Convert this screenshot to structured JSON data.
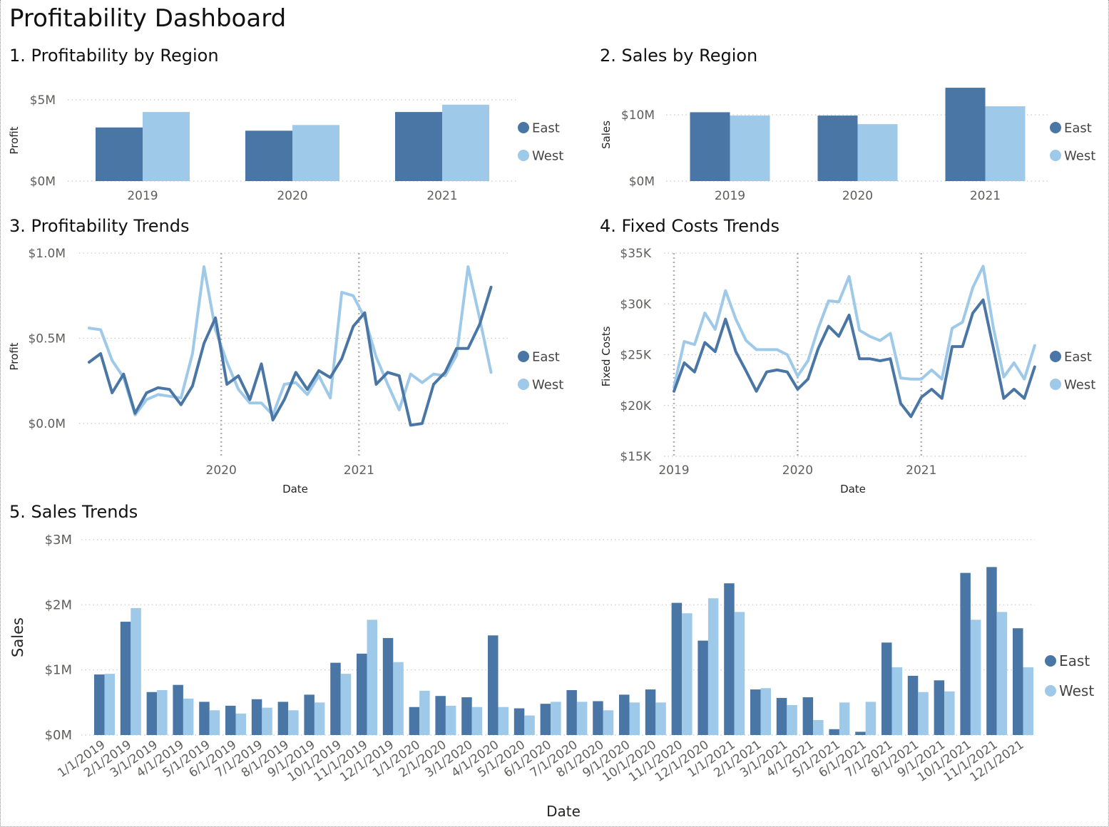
{
  "dashboard": {
    "title": "Profitability Dashboard"
  },
  "colors": {
    "east": "#4a76a6",
    "west": "#9ec9e8",
    "grid": "#c8c8c8",
    "text": "#605e5c"
  },
  "panels": {
    "p1": {
      "title": "1. Profitability by Region"
    },
    "p2": {
      "title": "2. Sales by Region"
    },
    "p3": {
      "title": "3. Profitability Trends"
    },
    "p4": {
      "title": "4. Fixed Costs Trends"
    },
    "p5": {
      "title": "5. Sales Trends"
    }
  },
  "chart_data": [
    {
      "id": "profit_by_region",
      "type": "bar",
      "title": "1. Profitability by Region",
      "xlabel": "",
      "ylabel": "Profit",
      "categories": [
        "2019",
        "2020",
        "2021"
      ],
      "series": [
        {
          "name": "East",
          "values": [
            3.3,
            3.1,
            4.25
          ]
        },
        {
          "name": "West",
          "values": [
            4.25,
            3.45,
            4.7
          ]
        }
      ],
      "ylim": [
        0,
        5
      ],
      "yticks": [
        0,
        5
      ],
      "ytick_labels": [
        "$0M",
        "$5M"
      ],
      "legend": [
        "East",
        "West"
      ],
      "legend_position": "right",
      "grid": true
    },
    {
      "id": "sales_by_region",
      "type": "bar",
      "title": "2. Sales by Region",
      "xlabel": "",
      "ylabel": "Sales",
      "categories": [
        "2019",
        "2020",
        "2021"
      ],
      "series": [
        {
          "name": "East",
          "values": [
            10.4,
            9.9,
            14.1
          ]
        },
        {
          "name": "West",
          "values": [
            9.9,
            8.6,
            11.3
          ]
        }
      ],
      "ylim": [
        0,
        14
      ],
      "yticks": [
        0,
        10
      ],
      "ytick_labels": [
        "$0M",
        "$10M"
      ],
      "legend": [
        "East",
        "West"
      ],
      "legend_position": "right",
      "grid": true
    },
    {
      "id": "profit_trends",
      "type": "line",
      "title": "3. Profitability Trends",
      "xlabel": "Date",
      "ylabel": "Profit",
      "x_start": "2019-01",
      "months": 36,
      "xticks": [
        {
          "label": "2020",
          "month_index": 11.5
        },
        {
          "label": "2021",
          "month_index": 23.5
        }
      ],
      "series": [
        {
          "name": "East",
          "values": [
            0.36,
            0.41,
            0.18,
            0.29,
            0.06,
            0.18,
            0.21,
            0.2,
            0.11,
            0.22,
            0.47,
            0.62,
            0.23,
            0.28,
            0.14,
            0.35,
            0.02,
            0.14,
            0.3,
            0.2,
            0.31,
            0.27,
            0.38,
            0.57,
            0.65,
            0.23,
            0.3,
            0.28,
            -0.01,
            0.0,
            0.23,
            0.3,
            0.44,
            0.44,
            0.58,
            0.8
          ]
        },
        {
          "name": "West",
          "values": [
            0.56,
            0.55,
            0.37,
            0.27,
            0.05,
            0.14,
            0.17,
            0.16,
            0.15,
            0.41,
            0.92,
            0.55,
            0.36,
            0.2,
            0.12,
            0.12,
            0.05,
            0.23,
            0.24,
            0.17,
            0.28,
            0.15,
            0.77,
            0.75,
            0.62,
            0.39,
            0.23,
            0.08,
            0.29,
            0.24,
            0.29,
            0.28,
            0.4,
            0.92,
            0.62,
            0.3
          ]
        }
      ],
      "ylim": [
        0,
        1.0
      ],
      "yticks": [
        0,
        0.5,
        1.0
      ],
      "ytick_labels": [
        "$0.0M",
        "$0.5M",
        "$1.0M"
      ],
      "legend": [
        "East",
        "West"
      ],
      "legend_position": "right",
      "grid": true
    },
    {
      "id": "fixed_costs_trends",
      "type": "line",
      "title": "4. Fixed Costs Trends",
      "xlabel": "Date",
      "ylabel": "Fixed Costs",
      "x_start": "2019-01",
      "months": 36,
      "xticks": [
        {
          "label": "2019",
          "month_index": 0
        },
        {
          "label": "2020",
          "month_index": 12
        },
        {
          "label": "2021",
          "month_index": 24
        }
      ],
      "series": [
        {
          "name": "East",
          "values": [
            21.4,
            24.2,
            23.3,
            26.2,
            25.3,
            28.5,
            25.3,
            23.4,
            21.4,
            23.3,
            23.5,
            23.3,
            21.6,
            22.6,
            25.6,
            27.8,
            26.8,
            28.9,
            24.6,
            24.6,
            24.4,
            24.6,
            20.2,
            18.9,
            20.8,
            21.6,
            20.7,
            25.8,
            25.8,
            29.1,
            30.4,
            25.6,
            20.7,
            21.6,
            20.7,
            23.8
          ]
        },
        {
          "name": "West",
          "values": [
            21.8,
            26.3,
            26.0,
            29.1,
            27.5,
            31.3,
            28.5,
            26.4,
            25.5,
            25.5,
            25.5,
            25.0,
            22.9,
            24.4,
            27.6,
            30.3,
            30.2,
            32.7,
            27.4,
            26.8,
            26.4,
            27.1,
            22.7,
            22.6,
            22.6,
            23.5,
            22.6,
            27.6,
            28.2,
            31.6,
            33.7,
            27.6,
            22.8,
            24.2,
            22.6,
            25.9
          ]
        }
      ],
      "ylim": [
        15,
        35
      ],
      "yticks": [
        15,
        20,
        25,
        30,
        35
      ],
      "ytick_labels": [
        "$15K",
        "$20K",
        "$25K",
        "$30K",
        "$35K"
      ],
      "legend": [
        "East",
        "West"
      ],
      "legend_position": "right",
      "grid": true
    },
    {
      "id": "sales_trends",
      "type": "bar",
      "title": "5. Sales Trends",
      "xlabel": "Date",
      "ylabel": "Sales",
      "categories": [
        "1/1/2019",
        "2/1/2019",
        "3/1/2019",
        "4/1/2019",
        "5/1/2019",
        "6/1/2019",
        "7/1/2019",
        "8/1/2019",
        "9/1/2019",
        "10/1/2019",
        "11/1/2019",
        "12/1/2019",
        "1/1/2020",
        "2/1/2020",
        "3/1/2020",
        "4/1/2020",
        "5/1/2020",
        "6/1/2020",
        "7/1/2020",
        "8/1/2020",
        "9/1/2020",
        "10/1/2020",
        "11/1/2020",
        "12/1/2020",
        "1/1/2021",
        "2/1/2021",
        "3/1/2021",
        "4/1/2021",
        "5/1/2021",
        "6/1/2021",
        "7/1/2021",
        "8/1/2021",
        "9/1/2021",
        "10/1/2021",
        "11/1/2021",
        "12/1/2021"
      ],
      "series": [
        {
          "name": "East",
          "values": [
            0.93,
            1.74,
            0.66,
            0.77,
            0.51,
            0.45,
            0.55,
            0.51,
            0.62,
            1.11,
            1.25,
            1.49,
            0.43,
            0.6,
            0.58,
            1.53,
            0.41,
            0.48,
            0.69,
            0.52,
            0.62,
            0.7,
            2.03,
            1.45,
            2.33,
            0.7,
            0.57,
            0.58,
            0.09,
            0.05,
            1.42,
            0.91,
            0.84,
            2.49,
            2.58,
            1.64
          ]
        },
        {
          "name": "West",
          "values": [
            0.94,
            1.95,
            0.69,
            0.56,
            0.38,
            0.33,
            0.42,
            0.38,
            0.5,
            0.94,
            1.77,
            1.12,
            0.68,
            0.45,
            0.43,
            0.43,
            0.3,
            0.51,
            0.51,
            0.38,
            0.5,
            0.5,
            1.87,
            2.1,
            1.89,
            0.72,
            0.46,
            0.23,
            0.5,
            0.51,
            1.04,
            0.66,
            0.67,
            1.77,
            1.89,
            1.04
          ]
        }
      ],
      "ylim": [
        0,
        3
      ],
      "yticks": [
        0,
        1,
        2,
        3
      ],
      "ytick_labels": [
        "$0M",
        "$1M",
        "$2M",
        "$3M"
      ],
      "legend": [
        "East",
        "West"
      ],
      "legend_position": "right",
      "grid": true
    }
  ]
}
